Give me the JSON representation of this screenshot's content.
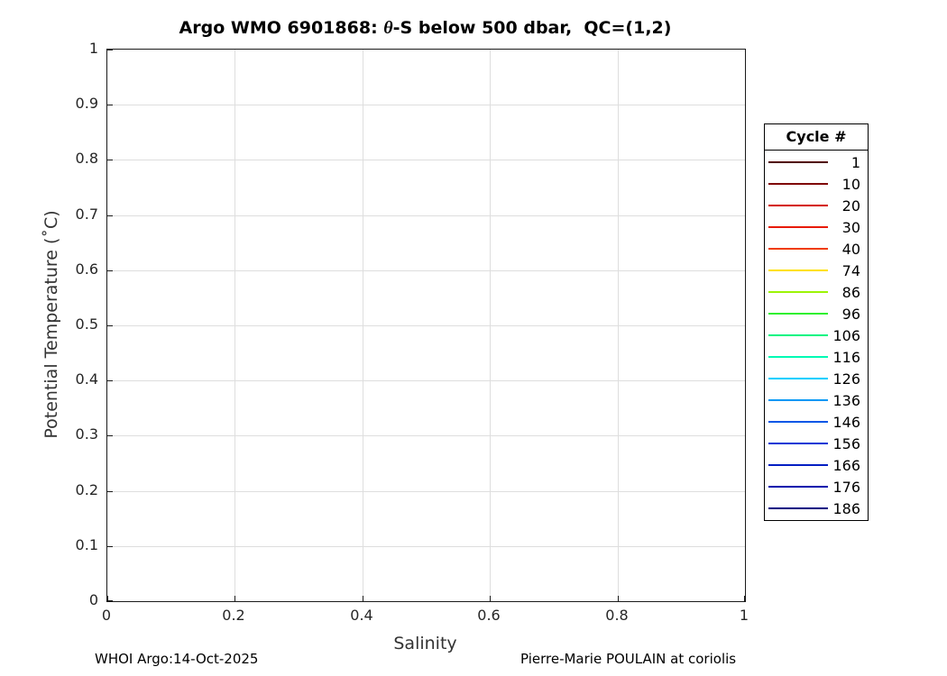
{
  "chart_data": {
    "type": "line",
    "title": {
      "part1": "Argo WMO 6901868: ",
      "theta": "θ",
      "part2": "-S below 500 dbar,  QC=(1,2)"
    },
    "xlabel": "Salinity",
    "ylabel": "Potential Temperature (˚C)",
    "xlim": [
      0,
      1
    ],
    "ylim": [
      0,
      1
    ],
    "xticks": [
      0,
      0.2,
      0.4,
      0.6,
      0.8,
      1
    ],
    "xtick_labels": [
      "0",
      "0.2",
      "0.4",
      "0.6",
      "0.8",
      "1"
    ],
    "yticks": [
      0,
      0.1,
      0.2,
      0.3,
      0.4,
      0.5,
      0.6,
      0.7,
      0.8,
      0.9,
      1
    ],
    "ytick_labels": [
      "0",
      "0.1",
      "0.2",
      "0.3",
      "0.4",
      "0.5",
      "0.6",
      "0.7",
      "0.8",
      "0.9",
      "1"
    ],
    "grid": true,
    "grid_color": "#dedede",
    "axis_color": "#1a1a1a",
    "plot_area_content": "empty (no data points within axes limits)",
    "legend": {
      "title": "Cycle #",
      "position": "outside-right",
      "entries": [
        {
          "label": "1",
          "color": "#500000",
          "points": []
        },
        {
          "label": "10",
          "color": "#7f0000",
          "points": []
        },
        {
          "label": "20",
          "color": "#d40e00",
          "points": []
        },
        {
          "label": "30",
          "color": "#e81a00",
          "points": []
        },
        {
          "label": "40",
          "color": "#f03c00",
          "points": []
        },
        {
          "label": "74",
          "color": "#ffe100",
          "points": []
        },
        {
          "label": "86",
          "color": "#9cf406",
          "points": []
        },
        {
          "label": "96",
          "color": "#30f030",
          "points": []
        },
        {
          "label": "106",
          "color": "#00f482",
          "points": []
        },
        {
          "label": "116",
          "color": "#00fab4",
          "points": []
        },
        {
          "label": "126",
          "color": "#00cfff",
          "points": []
        },
        {
          "label": "136",
          "color": "#0098f5",
          "points": []
        },
        {
          "label": "146",
          "color": "#0056e6",
          "points": []
        },
        {
          "label": "156",
          "color": "#0038d6",
          "points": []
        },
        {
          "label": "166",
          "color": "#001ec3",
          "points": []
        },
        {
          "label": "176",
          "color": "#000cad",
          "points": []
        },
        {
          "label": "186",
          "color": "#000082",
          "points": []
        }
      ]
    }
  },
  "footer": {
    "left": "WHOI Argo:14-Oct-2025",
    "right": "Pierre-Marie POULAIN at coriolis"
  }
}
